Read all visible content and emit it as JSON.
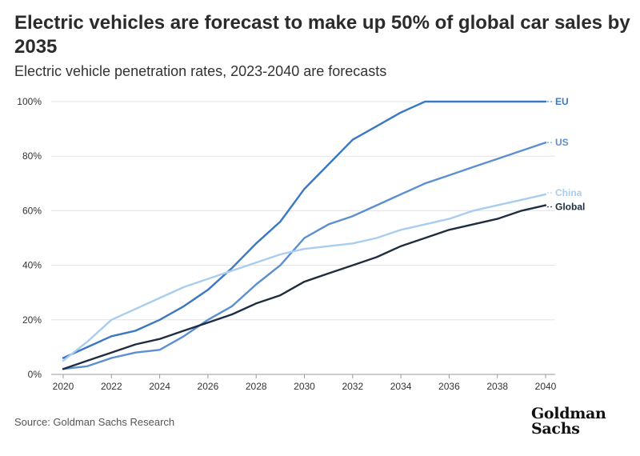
{
  "chart_data": {
    "type": "line",
    "title": "Electric vehicles are forecast to make up 50% of global car sales by 2035",
    "subtitle": "Electric vehicle penetration rates, 2023-2040 are forecasts",
    "xlabel": "",
    "ylabel": "",
    "x": [
      2020,
      2021,
      2022,
      2023,
      2024,
      2025,
      2026,
      2027,
      2028,
      2029,
      2030,
      2031,
      2032,
      2033,
      2034,
      2035,
      2036,
      2037,
      2038,
      2039,
      2040
    ],
    "x_ticks": [
      2020,
      2022,
      2024,
      2026,
      2028,
      2030,
      2032,
      2034,
      2036,
      2038,
      2040
    ],
    "y_ticks": [
      0,
      20,
      40,
      60,
      80,
      100
    ],
    "y_tick_labels": [
      "0%",
      "20%",
      "40%",
      "60%",
      "80%",
      "100%"
    ],
    "xlim": [
      2020,
      2040
    ],
    "ylim": [
      0,
      100
    ],
    "grid": "y",
    "series": [
      {
        "name": "EU",
        "color": "#3a78c2",
        "values": [
          6,
          10,
          14,
          16,
          20,
          25,
          31,
          39,
          48,
          56,
          68,
          77,
          86,
          91,
          96,
          100,
          100,
          100,
          100,
          100,
          100
        ]
      },
      {
        "name": "US",
        "color": "#5b8fcf",
        "values": [
          2,
          3,
          6,
          8,
          9,
          14,
          20,
          25,
          33,
          40,
          50,
          55,
          58,
          62,
          66,
          70,
          73,
          76,
          79,
          82,
          85
        ]
      },
      {
        "name": "China",
        "color": "#a9cdee",
        "values": [
          5,
          12,
          20,
          24,
          28,
          32,
          35,
          38,
          41,
          44,
          46,
          47,
          48,
          50,
          53,
          55,
          57,
          60,
          62,
          64,
          66
        ]
      },
      {
        "name": "Global",
        "color": "#1e2d40",
        "values": [
          2,
          5,
          8,
          11,
          13,
          16,
          19,
          22,
          26,
          29,
          34,
          37,
          40,
          43,
          47,
          50,
          53,
          55,
          57,
          60,
          62
        ]
      }
    ]
  },
  "source": "Source: Goldman Sachs Research",
  "logo": {
    "line1": "Goldman",
    "line2": "Sachs"
  }
}
